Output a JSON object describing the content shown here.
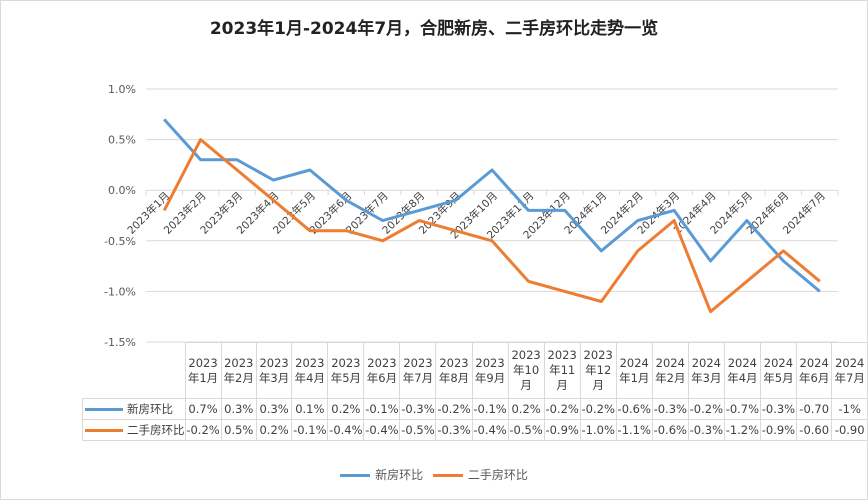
{
  "title": "2023年1月-2024年7月，合肥新房、二手房环比走势一览",
  "colors": {
    "new": "#5b9bd5",
    "resale": "#ed7d31",
    "grid": "#d9d9d9"
  },
  "legend": [
    {
      "label": "新房环比",
      "color": "#5b9bd5"
    },
    {
      "label": "二手房环比",
      "color": "#ed7d31"
    }
  ],
  "table": {
    "headers": [
      "2023年1月",
      "2023年2月",
      "2023年3月",
      "2023年4月",
      "2023年5月",
      "2023年6月",
      "2023年7月",
      "2023年8月",
      "2023年9月",
      "2023年10月",
      "2023年11月",
      "2023年12月",
      "2024年1月",
      "2024年2月",
      "2024年3月",
      "2024年4月",
      "2024年5月",
      "2024年6月",
      "2024年7月"
    ],
    "rows": [
      {
        "label": "新房环比",
        "cells": [
          "0.7%",
          "0.3%",
          "0.3%",
          "0.1%",
          "0.2%",
          "-0.1%",
          "-0.3%",
          "-0.2%",
          "-0.1%",
          "0.2%",
          "-0.2%",
          "-0.2%",
          "-0.6%",
          "-0.3%",
          "-0.2%",
          "-0.7%",
          "-0.3%",
          "-0.70",
          "-1%"
        ]
      },
      {
        "label": "二手房环比",
        "cells": [
          "-0.2%",
          "0.5%",
          "0.2%",
          "-0.1%",
          "-0.4%",
          "-0.4%",
          "-0.5%",
          "-0.3%",
          "-0.4%",
          "-0.5%",
          "-0.9%",
          "-1.0%",
          "-1.1%",
          "-0.6%",
          "-0.3%",
          "-1.2%",
          "-0.9%",
          "-0.60",
          "-0.90"
        ]
      }
    ]
  },
  "chart_data": {
    "type": "line",
    "title": "2023年1月-2024年7月，合肥新房、二手房环比走势一览",
    "xlabel": "",
    "ylabel": "",
    "categories": [
      "2023年1月",
      "2023年2月",
      "2023年3月",
      "2023年4月",
      "2023年5月",
      "2023年6月",
      "2023年7月",
      "2023年8月",
      "2023年9月",
      "2023年10月",
      "2023年11月",
      "2023年12月",
      "2024年1月",
      "2024年2月",
      "2024年3月",
      "2024年4月",
      "2024年5月",
      "2024年6月",
      "2024年7月"
    ],
    "series": [
      {
        "name": "新房环比",
        "color": "#5b9bd5",
        "values": [
          0.7,
          0.3,
          0.3,
          0.1,
          0.2,
          -0.1,
          -0.3,
          -0.2,
          -0.1,
          0.2,
          -0.2,
          -0.2,
          -0.6,
          -0.3,
          -0.2,
          -0.7,
          -0.3,
          -0.7,
          -1.0
        ]
      },
      {
        "name": "二手房环比",
        "color": "#ed7d31",
        "values": [
          -0.2,
          0.5,
          0.2,
          -0.1,
          -0.4,
          -0.4,
          -0.5,
          -0.3,
          -0.4,
          -0.5,
          -0.9,
          -1.0,
          -1.1,
          -0.6,
          -0.3,
          -1.2,
          -0.9,
          -0.6,
          -0.9
        ]
      }
    ],
    "yticks": [
      "1.0%",
      "0.5%",
      "0.0%",
      "-0.5%",
      "-1.0%",
      "-1.5%"
    ],
    "ylim": [
      -1.5,
      1.0
    ],
    "grid": true,
    "legend_position": "bottom",
    "data_table": true
  }
}
